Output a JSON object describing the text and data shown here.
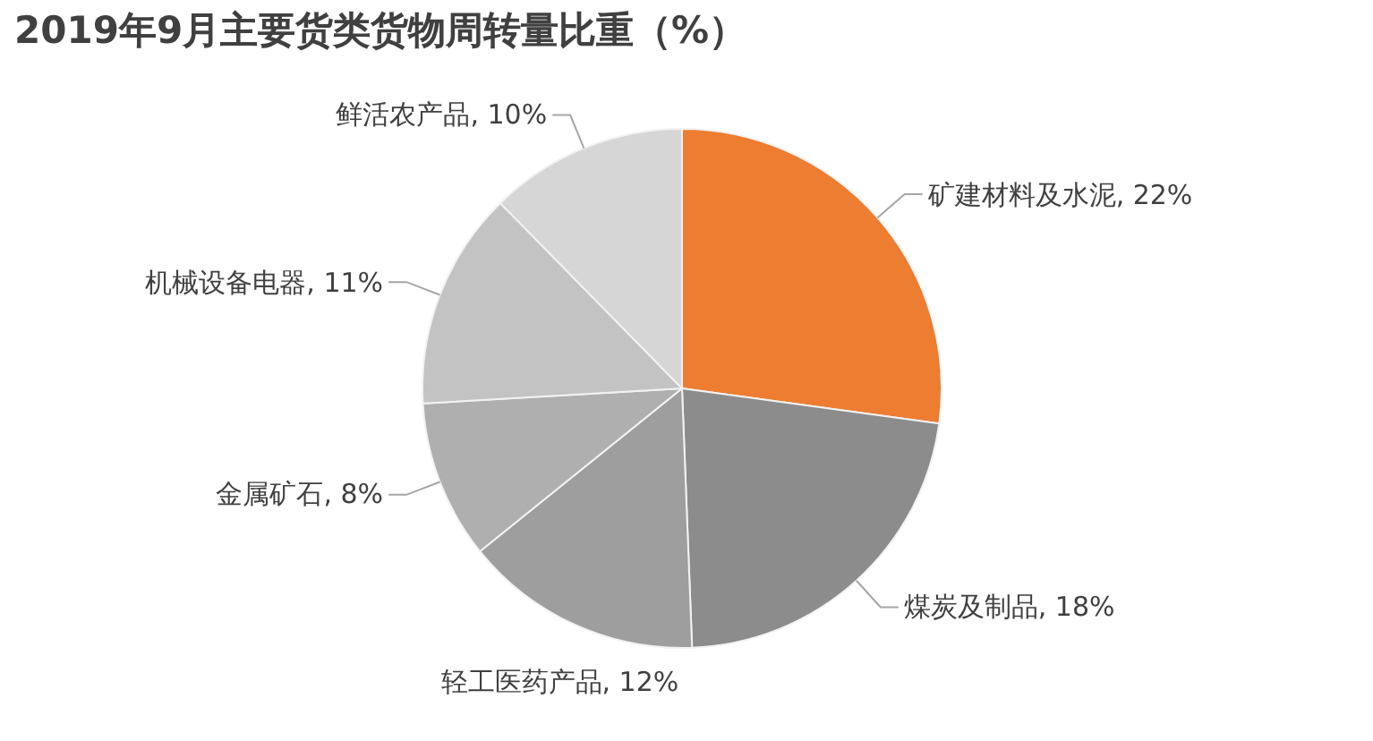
{
  "chart_data": {
    "type": "pie",
    "title": "2019年9月主要货类货物周转量比重（%）",
    "categories": [
      "矿建材料及水泥",
      "煤炭及制品",
      "轻工医药产品",
      "金属矿石",
      "机械设备电器",
      "鲜活农产品"
    ],
    "values": [
      22,
      18,
      12,
      8,
      11,
      10
    ],
    "value_labels": [
      "22%",
      "18%",
      "12%",
      "8%",
      "11%",
      "10%"
    ],
    "colors": [
      "#ed7d31",
      "#8c8c8c",
      "#9e9e9e",
      "#afafaf",
      "#c3c3c3",
      "#d6d6d6"
    ]
  }
}
